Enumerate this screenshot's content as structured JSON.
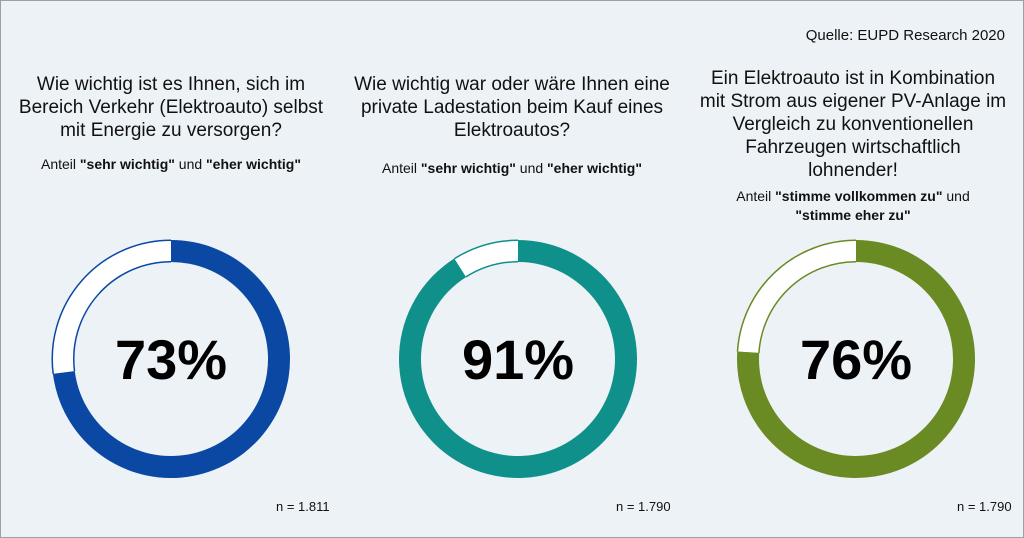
{
  "source": "Quelle: EUPD Research 2020",
  "chart_data": [
    {
      "type": "pie",
      "question": [
        "Wie wichtig ist es Ihnen, sich im",
        "Bereich Verkehr (Elektroauto) selbst",
        "mit Energie zu versorgen?"
      ],
      "share_prefix": "Anteil ",
      "share_bold_1": "\"sehr wichtig\"",
      "share_mid": " und ",
      "share_bold_2": "\"eher wichtig\"",
      "value": 73,
      "value_label": "73%",
      "n_label": "n = 1.811",
      "color": "#0a48a3"
    },
    {
      "type": "pie",
      "question": [
        "Wie wichtig war oder wäre Ihnen eine",
        "private Ladestation beim Kauf eines",
        "Elektroautos?"
      ],
      "share_prefix": "Anteil ",
      "share_bold_1": "\"sehr wichtig\"",
      "share_mid": " und ",
      "share_bold_2": "\"eher wichtig\"",
      "value": 91,
      "value_label": "91%",
      "n_label": "n = 1.790",
      "color": "#10908b"
    },
    {
      "type": "pie",
      "question": [
        "Ein Elektroauto ist in Kombination",
        "mit Strom aus eigener PV-Anlage im",
        "Vergleich zu konventionellen",
        "Fahrzeugen wirtschaftlich",
        "lohnender!"
      ],
      "share_prefix": "Anteil ",
      "share_bold_1": "\"stimme vollkommen zu\"",
      "share_mid": " und",
      "share_bold_2": "\"stimme eher zu\"",
      "value": 76,
      "value_label": "76%",
      "n_label": "n = 1.790",
      "color": "#6a8a24"
    }
  ]
}
